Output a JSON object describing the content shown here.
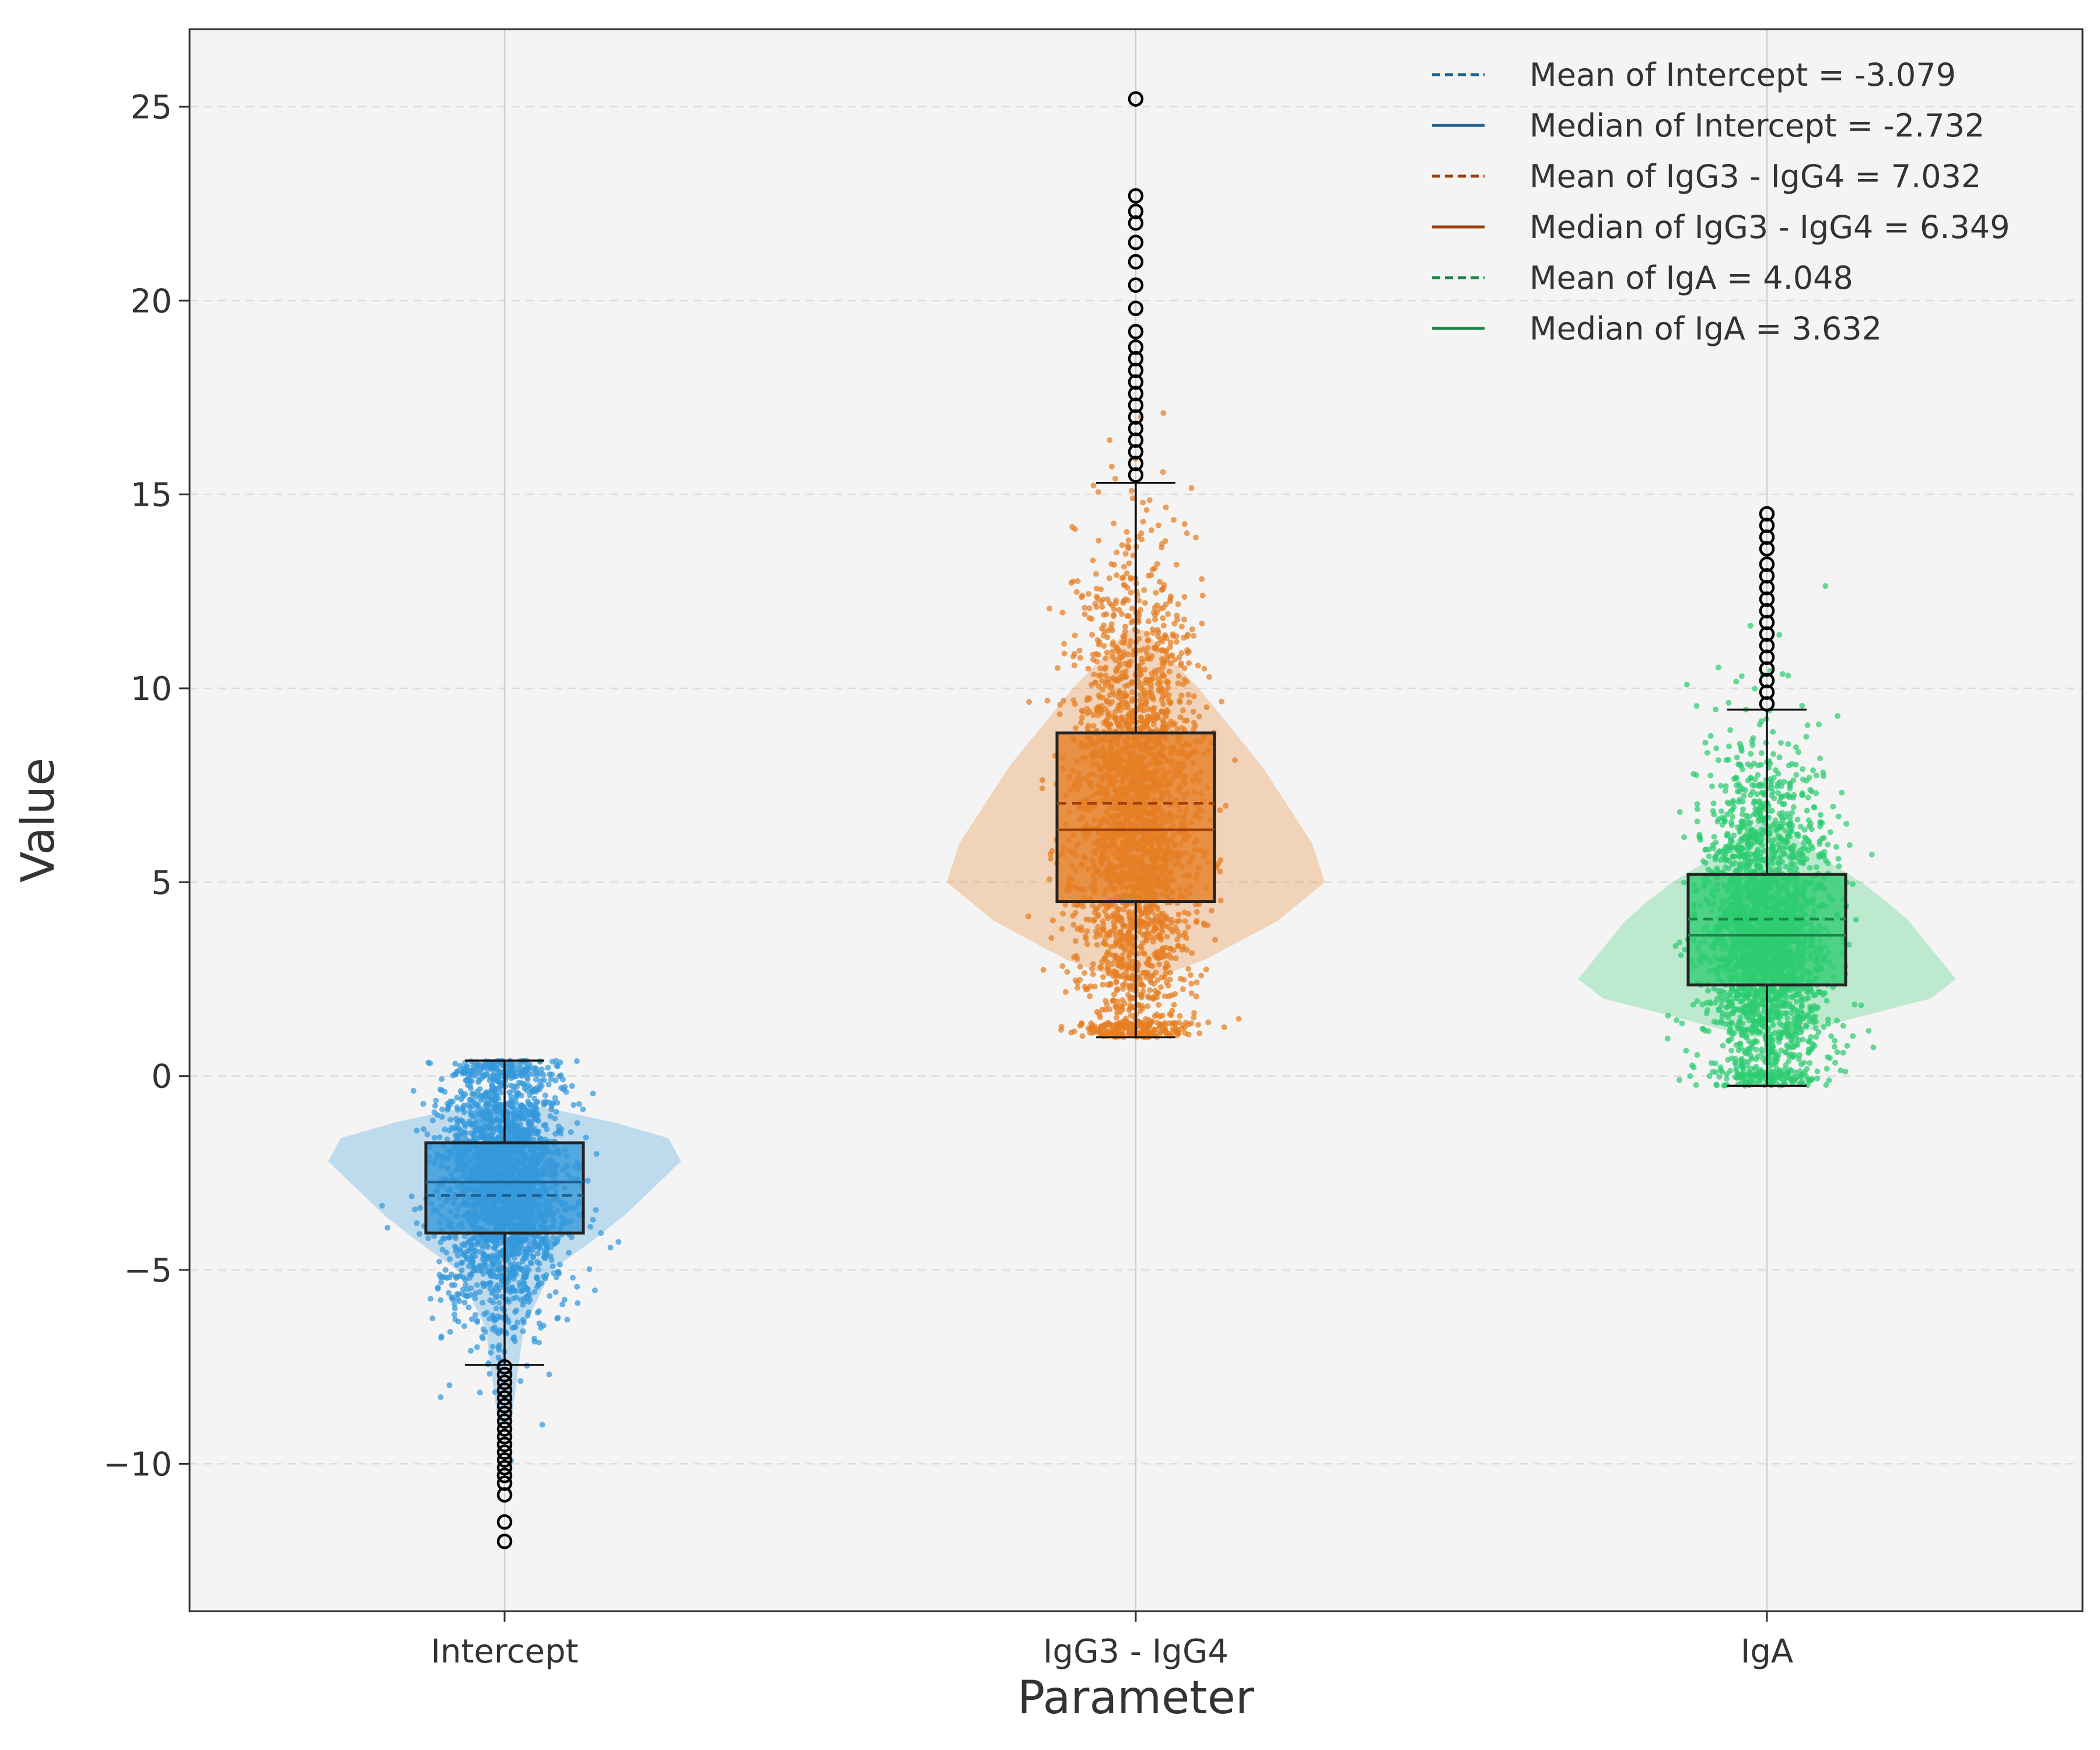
{
  "chart_data": {
    "type": "violin-box-strip",
    "title": "",
    "xlabel": "Parameter",
    "ylabel": "Value",
    "ylim": [
      -13.8,
      27.0
    ],
    "yticks": [
      {
        "value": -10,
        "label": "−10"
      },
      {
        "value": -5,
        "label": "−5"
      },
      {
        "value": 0,
        "label": "0"
      },
      {
        "value": 5,
        "label": "5"
      },
      {
        "value": 10,
        "label": "10"
      },
      {
        "value": 15,
        "label": "15"
      },
      {
        "value": 20,
        "label": "20"
      },
      {
        "value": 25,
        "label": "25"
      }
    ],
    "grid": true,
    "legend_position": "top-right",
    "categories": [
      "Intercept",
      "IgG3 - IgG4",
      "IgA"
    ],
    "series": [
      {
        "name": "Intercept",
        "color": "#3498db",
        "box_edge": "#222222",
        "line_color": "#1f5f8b",
        "mean": -3.079,
        "median": -2.732,
        "q1": -4.05,
        "q3": -1.72,
        "whisker_low": -7.45,
        "whisker_high": 0.4,
        "min": -12.0,
        "max": 0.4,
        "violin": [
          [
            -9.0,
            0.02
          ],
          [
            -6.5,
            0.06
          ],
          [
            -5.0,
            0.15
          ],
          [
            -4.3,
            0.27
          ],
          [
            -3.6,
            0.38
          ],
          [
            -2.9,
            0.47
          ],
          [
            -2.2,
            0.56
          ],
          [
            -1.6,
            0.52
          ],
          [
            -1.2,
            0.35
          ],
          [
            -0.9,
            0.18
          ],
          [
            -0.7,
            0.05
          ]
        ],
        "outliers": [
          -7.5,
          -7.7,
          -7.9,
          -8.1,
          -8.3,
          -8.5,
          -8.7,
          -8.9,
          -9.1,
          -9.3,
          -9.5,
          -9.7,
          -9.9,
          -10.1,
          -10.3,
          -10.5,
          -10.8,
          -11.5,
          -12.0
        ]
      },
      {
        "name": "IgG3 - IgG4",
        "color": "#e67e22",
        "box_edge": "#222222",
        "line_color": "#a0400a",
        "mean": 7.032,
        "median": 6.349,
        "q1": 4.5,
        "q3": 8.85,
        "whisker_low": 1.0,
        "whisker_high": 15.3,
        "min": 1.0,
        "max": 25.2,
        "violin": [
          [
            2.5,
            0.05
          ],
          [
            3.0,
            0.22
          ],
          [
            4.0,
            0.45
          ],
          [
            5.0,
            0.6
          ],
          [
            6.0,
            0.56
          ],
          [
            7.0,
            0.48
          ],
          [
            8.0,
            0.4
          ],
          [
            9.0,
            0.3
          ],
          [
            10.0,
            0.2
          ],
          [
            11.0,
            0.08
          ],
          [
            11.5,
            0.03
          ]
        ],
        "outliers": [
          15.5,
          15.8,
          16.1,
          16.4,
          16.7,
          17.0,
          17.3,
          17.6,
          17.9,
          18.2,
          18.5,
          18.8,
          19.2,
          19.8,
          20.4,
          21.0,
          21.5,
          22.0,
          22.3,
          22.7,
          25.2
        ]
      },
      {
        "name": "IgA",
        "color": "#2ecc71",
        "box_edge": "#222222",
        "line_color": "#1e8449",
        "mean": 4.048,
        "median": 3.632,
        "q1": 2.35,
        "q3": 5.2,
        "whisker_low": -0.25,
        "whisker_high": 9.45,
        "min": -0.25,
        "max": 14.5,
        "violin": [
          [
            1.0,
            0.05
          ],
          [
            1.5,
            0.28
          ],
          [
            2.0,
            0.52
          ],
          [
            2.5,
            0.6
          ],
          [
            3.0,
            0.55
          ],
          [
            3.5,
            0.5
          ],
          [
            4.0,
            0.45
          ],
          [
            4.5,
            0.38
          ],
          [
            5.0,
            0.3
          ],
          [
            5.5,
            0.2
          ],
          [
            6.2,
            0.08
          ],
          [
            6.6,
            0.02
          ]
        ],
        "outliers": [
          9.6,
          9.9,
          10.2,
          10.5,
          10.8,
          11.1,
          11.4,
          11.7,
          12.0,
          12.3,
          12.6,
          12.9,
          13.2,
          13.6,
          13.9,
          14.2,
          14.5
        ]
      }
    ],
    "legend": [
      {
        "label": "Mean of Intercept = -3.079",
        "style": "dashed",
        "color": "#1f5f8b"
      },
      {
        "label": "Median of Intercept = -2.732",
        "style": "solid",
        "color": "#1f5f8b"
      },
      {
        "label": "Mean of IgG3 - IgG4 = 7.032",
        "style": "dashed",
        "color": "#a0400a"
      },
      {
        "label": "Median of IgG3 - IgG4 = 6.349",
        "style": "solid",
        "color": "#a0400a"
      },
      {
        "label": "Mean of IgA = 4.048",
        "style": "dashed",
        "color": "#1e8449"
      },
      {
        "label": "Median of IgA = 3.632",
        "style": "solid",
        "color": "#1e8449"
      }
    ]
  }
}
